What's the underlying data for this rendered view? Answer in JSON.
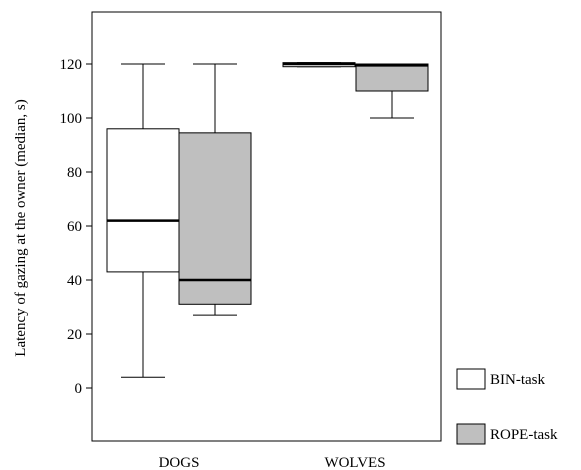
{
  "chart_data": {
    "type": "boxplot",
    "ylabel": "Latency of gazing at the owner (median, s)",
    "xlabel": "",
    "ylim": [
      -20,
      140
    ],
    "yticks": [
      0,
      20,
      40,
      60,
      80,
      100,
      120
    ],
    "grid": false,
    "categories": [
      "DOGS",
      "WOLVES"
    ],
    "legend": {
      "placement": "bottom-right"
    },
    "series": [
      {
        "name": "BIN-task",
        "color": "#ffffff",
        "boxes": [
          {
            "min": 4,
            "q1": 43,
            "median": 62,
            "q3": 96,
            "max": 120
          },
          {
            "min": 119,
            "q1": 119,
            "median": 120,
            "q3": 120.5,
            "max": 120.5
          }
        ]
      },
      {
        "name": "ROPE-task",
        "color": "#bfbfbf",
        "boxes": [
          {
            "min": 27,
            "q1": 31,
            "median": 40,
            "q3": 94.5,
            "max": 120
          },
          {
            "min": 100,
            "q1": 110,
            "median": 119.5,
            "q3": 120,
            "max": 120
          }
        ]
      }
    ]
  }
}
